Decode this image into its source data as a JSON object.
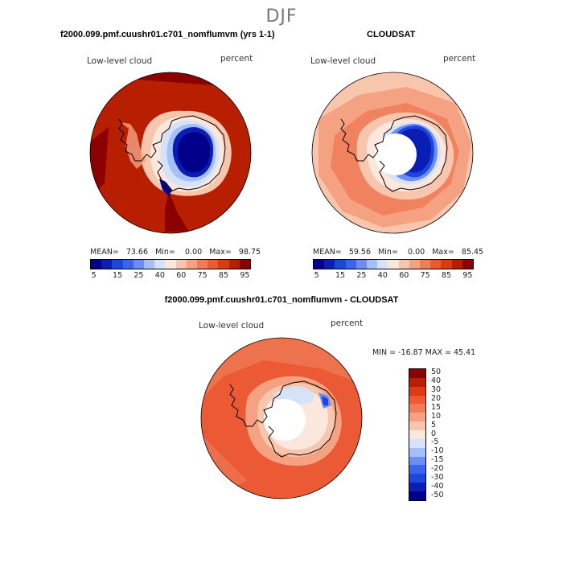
{
  "season": "DJF",
  "panels": [
    {
      "title": "f2000.099.pmf.cuushr01.c701_nomflumvm (yrs 1-1)",
      "variable": "Low-level cloud",
      "units": "percent",
      "stats": {
        "mean_label": "MEAN=",
        "mean": "73.66",
        "min_label": "Min=",
        "min": "0.00",
        "max_label": "Max=",
        "max": "98.75"
      },
      "colorbar_ticks": [
        "5",
        "15",
        "25",
        "40",
        "60",
        "75",
        "85",
        "95"
      ]
    },
    {
      "title": "CLOUDSAT",
      "variable": "Low-level cloud",
      "units": "percent",
      "stats": {
        "mean_label": "MEAN=",
        "mean": "59.56",
        "min_label": "Min=",
        "min": "0.00",
        "max_label": "Max=",
        "max": "85.45"
      },
      "colorbar_ticks": [
        "5",
        "15",
        "25",
        "40",
        "60",
        "75",
        "85",
        "95"
      ]
    },
    {
      "title": "f2000.099.pmf.cuushr01.c701_nomflumvm - CLOUDSAT",
      "variable": "Low-level cloud",
      "units": "percent",
      "stats": {
        "text": "MIN = -16.87  MAX =  45.41"
      },
      "colorbar_ticks": [
        "50",
        "40",
        "30",
        "20",
        "15",
        "10",
        "5",
        "0",
        "-5",
        "-10",
        "-15",
        "-20",
        "-30",
        "-40",
        "-50"
      ]
    }
  ],
  "colors": {
    "field_scale": [
      "#00008b",
      "#0a1eb4",
      "#1e46dc",
      "#3c64f0",
      "#6e8cf5",
      "#a5bff8",
      "#d6e2fa",
      "#fbe7dc",
      "#f8c6ad",
      "#f5a282",
      "#f07c5a",
      "#ec5a35",
      "#dd3a12",
      "#b81e00",
      "#8b0000"
    ],
    "diff_scale": [
      "#8b0000",
      "#b81e00",
      "#dd3a12",
      "#ec5a35",
      "#f07c5a",
      "#f5a282",
      "#f8c6ad",
      "#fbe7dc",
      "#d6e2fa",
      "#a5bff8",
      "#6e8cf5",
      "#3c64f0",
      "#1e46dc",
      "#0a1eb4",
      "#00008b"
    ]
  },
  "chart_data": [
    {
      "type": "heatmap",
      "projection": "south polar stereographic",
      "title": "f2000.099.pmf.cuushr01.c701_nomflumvm (yrs 1-1)",
      "variable": "Low-level cloud",
      "units": "percent",
      "mean": 73.66,
      "min": 0.0,
      "max": 98.75,
      "levels": [
        5,
        10,
        15,
        20,
        25,
        30,
        40,
        50,
        60,
        70,
        75,
        80,
        85,
        90,
        95
      ],
      "description_values": {
        "ocean_typical": 90,
        "antarctic_interior": 5
      }
    },
    {
      "type": "heatmap",
      "projection": "south polar stereographic",
      "title": "CLOUDSAT",
      "variable": "Low-level cloud",
      "units": "percent",
      "mean": 59.56,
      "min": 0.0,
      "max": 85.45,
      "levels": [
        5,
        10,
        15,
        20,
        25,
        30,
        40,
        50,
        60,
        70,
        75,
        80,
        85,
        90,
        95
      ],
      "description_values": {
        "ocean_typical": 70,
        "antarctic_interior": 5
      }
    },
    {
      "type": "heatmap",
      "projection": "south polar stereographic",
      "title": "f2000.099.pmf.cuushr01.c701_nomflumvm - CLOUDSAT",
      "variable": "Low-level cloud",
      "units": "percent",
      "min": -16.87,
      "max": 45.41,
      "levels": [
        -50,
        -40,
        -30,
        -20,
        -15,
        -10,
        -5,
        0,
        5,
        10,
        15,
        20,
        30,
        40,
        50
      ]
    }
  ]
}
